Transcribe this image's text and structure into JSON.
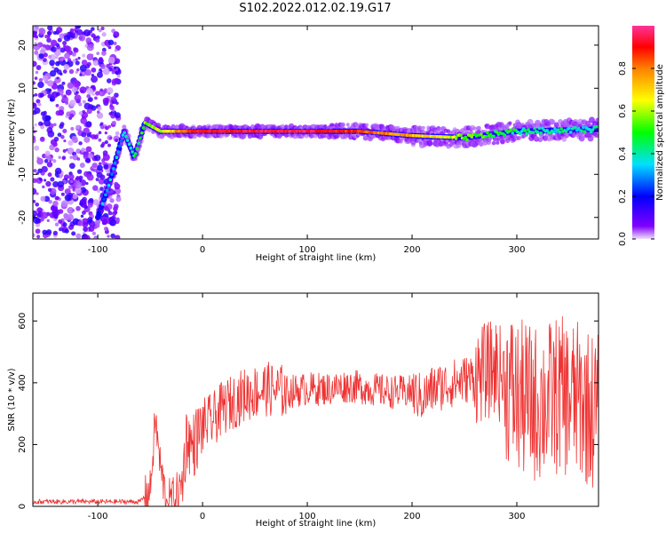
{
  "title": "S102.2022.012.02.19.G17",
  "chart_data": [
    {
      "type": "heatmap",
      "xlabel": "Height of straight line (km)",
      "ylabel": "Frequency (Hz)",
      "xlim": [
        -162,
        378
      ],
      "ylim": [
        -25,
        24.5
      ],
      "x_ticks": [
        -100,
        0,
        100,
        200,
        300
      ],
      "y_ticks": [
        -20,
        -10,
        0,
        10,
        20
      ],
      "colorbar": {
        "label": "Normalized spectral amplitude",
        "range": [
          0,
          1
        ],
        "ticks": [
          0.0,
          0.2,
          0.4,
          0.6,
          0.8
        ],
        "colormap": [
          "#e8d0ff",
          "#8000ff",
          "#0000ff",
          "#00e0ff",
          "#00ff00",
          "#ffff00",
          "#ff8000",
          "#ff0000",
          "#ff4080"
        ]
      },
      "ridge": [
        {
          "x": -100,
          "y": -20,
          "amp": 0.3
        },
        {
          "x": -90,
          "y": -13,
          "amp": 0.35
        },
        {
          "x": -75,
          "y": 0,
          "amp": 0.35
        },
        {
          "x": -65,
          "y": -6,
          "amp": 0.45
        },
        {
          "x": -55,
          "y": 2,
          "amp": 0.55
        },
        {
          "x": -40,
          "y": 0,
          "amp": 0.6
        },
        {
          "x": 0,
          "y": 0,
          "amp": 0.9
        },
        {
          "x": 100,
          "y": 0,
          "amp": 0.95
        },
        {
          "x": 150,
          "y": 0,
          "amp": 0.8
        },
        {
          "x": 200,
          "y": -1,
          "amp": 0.7
        },
        {
          "x": 250,
          "y": -1.5,
          "amp": 0.55
        },
        {
          "x": 300,
          "y": 0,
          "amp": 0.45
        },
        {
          "x": 378,
          "y": 0.5,
          "amp": 0.4
        }
      ]
    },
    {
      "type": "line",
      "xlabel": "Height of straight line (km)",
      "ylabel": "SNR (10 * v/v)",
      "xlim": [
        -162,
        378
      ],
      "ylim": [
        0,
        690
      ],
      "x_ticks": [
        -100,
        0,
        100,
        200,
        300
      ],
      "y_ticks": [
        0,
        200,
        400,
        600
      ],
      "color": "#ee3333",
      "series": [
        {
          "x": [
            -162,
            -120,
            -80,
            -60,
            -50,
            -45,
            -40,
            -35,
            -30,
            -20,
            -15,
            -10,
            0,
            10,
            20,
            40,
            60,
            80,
            100,
            120,
            140,
            160,
            180,
            200,
            210,
            220,
            240,
            260,
            280,
            300,
            320,
            340,
            360,
            378
          ],
          "y": [
            15,
            15,
            15,
            15,
            50,
            280,
            120,
            30,
            20,
            60,
            230,
            190,
            260,
            280,
            320,
            360,
            380,
            370,
            380,
            380,
            390,
            380,
            370,
            370,
            350,
            380,
            400,
            420,
            450,
            350,
            330,
            360,
            340,
            300
          ]
        }
      ]
    }
  ]
}
